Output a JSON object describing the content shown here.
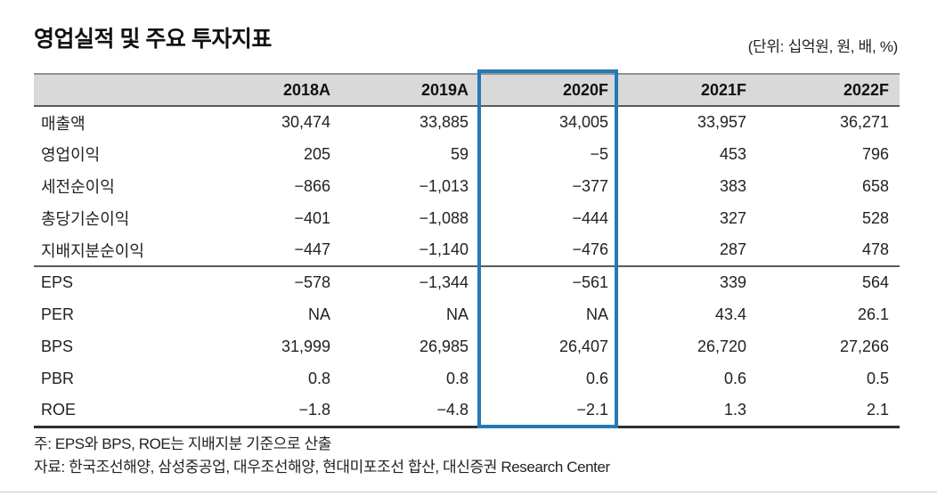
{
  "page": {
    "title": "영업실적 및 주요 투자지표",
    "unit_label": "(단위: 십억원, 원, 배, %)"
  },
  "table": {
    "columns": [
      "2018A",
      "2019A",
      "2020F",
      "2021F",
      "2022F"
    ],
    "highlighted_column": "2020F",
    "section_break_index": 5,
    "rows": [
      {
        "label": "매출액",
        "values": [
          "30,474",
          "33,885",
          "34,005",
          "33,957",
          "36,271"
        ]
      },
      {
        "label": "영업이익",
        "values": [
          "205",
          "59",
          "−5",
          "453",
          "796"
        ]
      },
      {
        "label": "세전순이익",
        "values": [
          "−866",
          "−1,013",
          "−377",
          "383",
          "658"
        ]
      },
      {
        "label": "총당기순이익",
        "values": [
          "−401",
          "−1,088",
          "−444",
          "327",
          "528"
        ]
      },
      {
        "label": "지배지분순이익",
        "values": [
          "−447",
          "−1,140",
          "−476",
          "287",
          "478"
        ]
      },
      {
        "label": "EPS",
        "values": [
          "−578",
          "−1,344",
          "−561",
          "339",
          "564"
        ]
      },
      {
        "label": "PER",
        "values": [
          "NA",
          "NA",
          "NA",
          "43.4",
          "26.1"
        ]
      },
      {
        "label": "BPS",
        "values": [
          "31,999",
          "26,985",
          "26,407",
          "26,720",
          "27,266"
        ]
      },
      {
        "label": "PBR",
        "values": [
          "0.8",
          "0.8",
          "0.6",
          "0.6",
          "0.5"
        ]
      },
      {
        "label": "ROE",
        "values": [
          "−1.8",
          "−4.8",
          "−2.1",
          "1.3",
          "2.1"
        ]
      }
    ]
  },
  "footnotes": {
    "note": "주: EPS와 BPS, ROE는 지배지분 기준으로 산출",
    "source": "자료: 한국조선해양, 삼성중공업, 대우조선해양, 현대미포조선 합산, 대신증권 Research Center"
  },
  "colors": {
    "highlight_border": "#2579b5",
    "header_bg": "#d9d9d9",
    "rule_light": "#929292",
    "rule_dark": "#5a5a5a",
    "rule_bottom": "#303030",
    "text": "#1a1a1a"
  }
}
